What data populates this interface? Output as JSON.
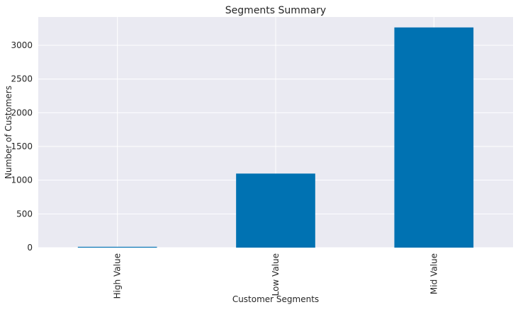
{
  "chart_data": {
    "type": "bar",
    "title": "Segments Summary",
    "xlabel": "Customer Segments",
    "ylabel": "Number of Customers",
    "categories": [
      "High Value",
      "Low Value",
      "Mid Value"
    ],
    "values": [
      12,
      1098,
      3265
    ],
    "ylim": [
      0,
      3420
    ],
    "yticks": [
      0,
      500,
      1000,
      1500,
      2000,
      2500,
      3000
    ],
    "grid": true,
    "colors": {
      "bar": "#0072b2",
      "plot_background": "#eaeaf2",
      "grid": "#ffffff"
    }
  }
}
